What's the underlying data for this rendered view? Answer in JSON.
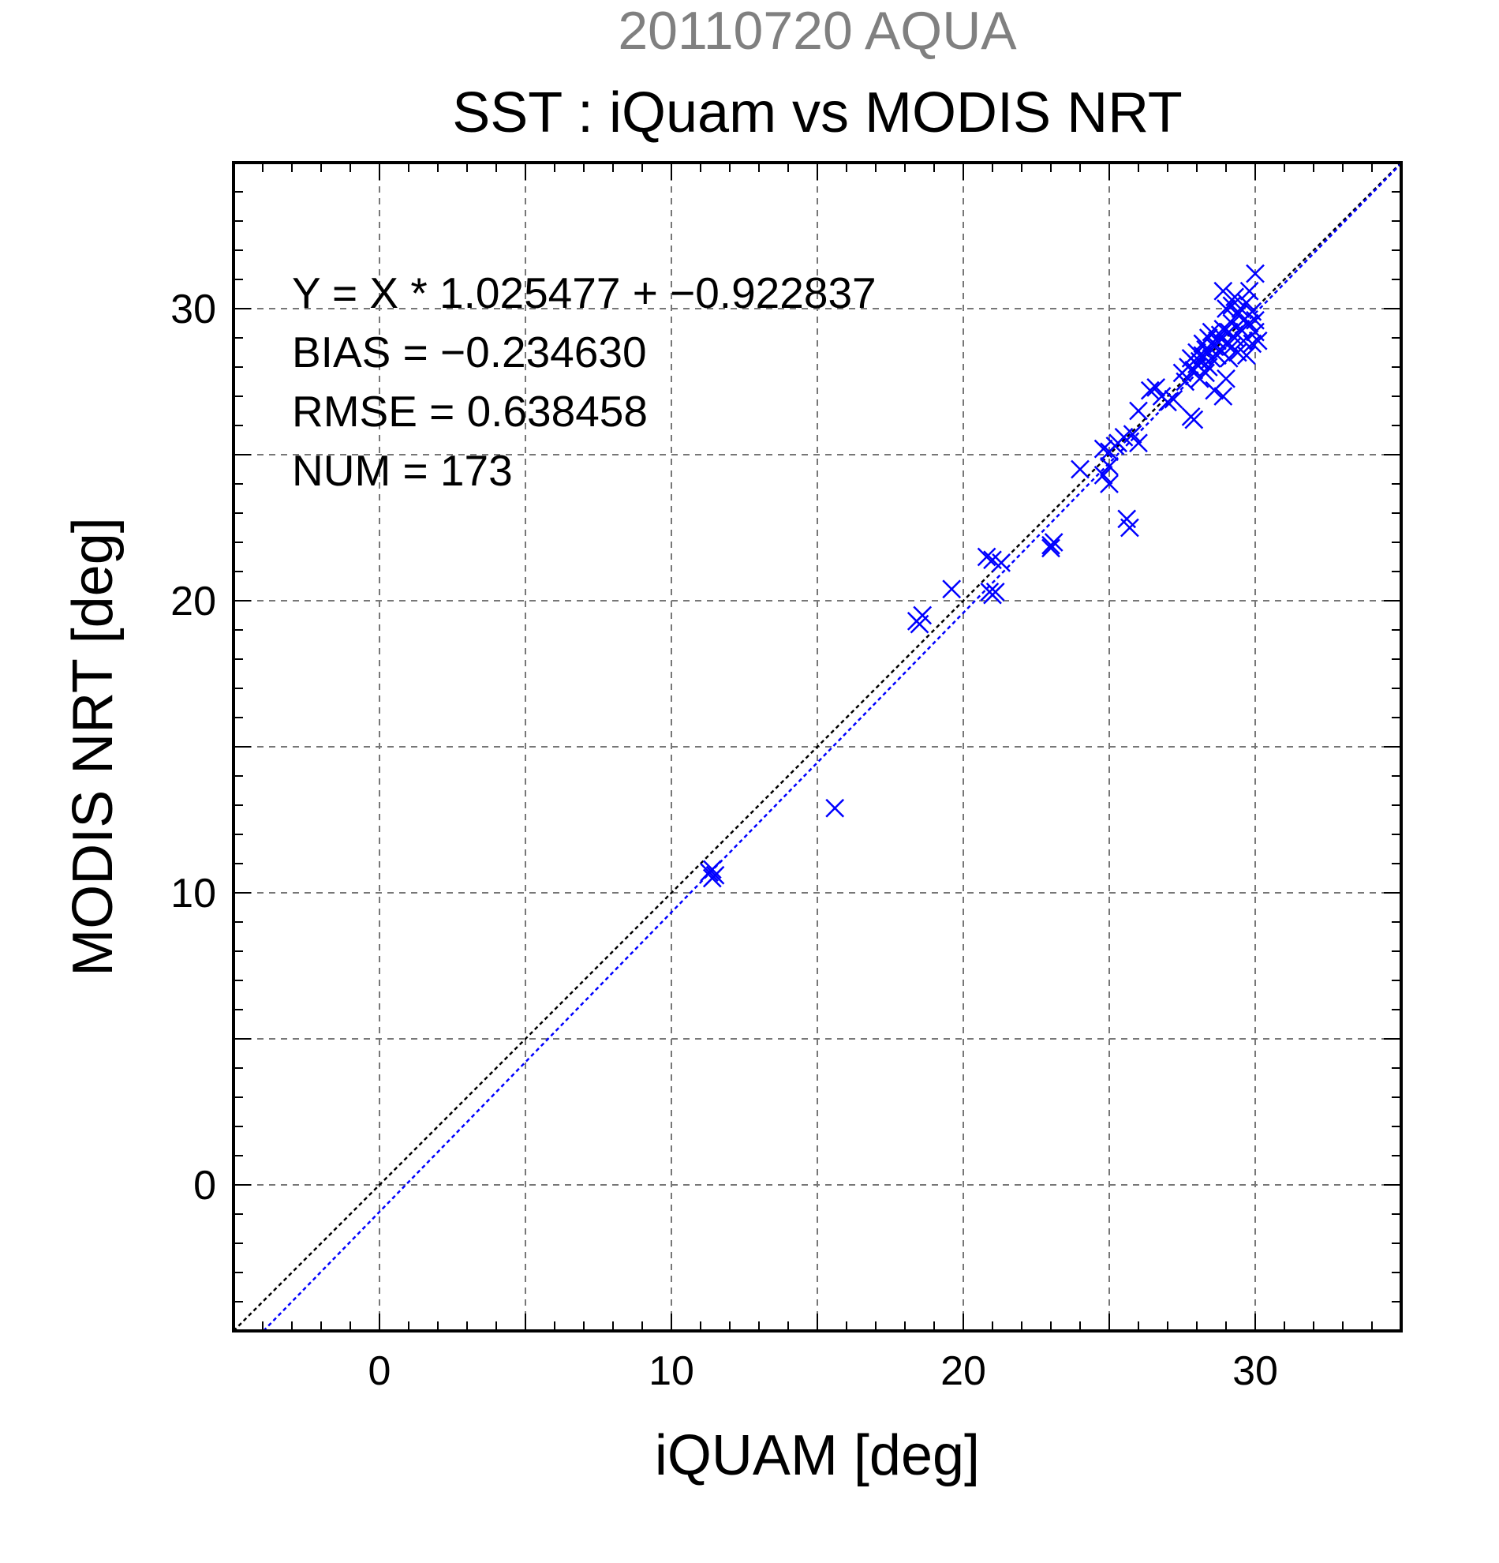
{
  "chart_data": {
    "type": "scatter",
    "suptitle": "20110720 AQUA",
    "title": "SST : iQuam vs MODIS NRT",
    "xlabel": "iQUAM [deg]",
    "ylabel": "MODIS NRT [deg]",
    "xlim": [
      -5,
      35
    ],
    "ylim": [
      -5,
      35
    ],
    "xticks": [
      0,
      10,
      20,
      30
    ],
    "yticks": [
      0,
      10,
      20,
      30
    ],
    "grid": true,
    "stats": {
      "line1": "Y = X * 1.025477 + −0.922837",
      "line2": "BIAS = −0.234630",
      "line3": "RMSE = 0.638458",
      "line4": "NUM = 173"
    },
    "lines": [
      {
        "role": "1:1",
        "slope": 1,
        "intercept": 0,
        "color": "#000000"
      },
      {
        "role": "fit",
        "slope": 1.025477,
        "intercept": -0.922837,
        "color": "#0000ff"
      }
    ],
    "series": [
      {
        "marker": "x",
        "color": "#0000ff",
        "points": [
          [
            11.3,
            10.7
          ],
          [
            11.4,
            10.5
          ],
          [
            11.5,
            10.6
          ],
          [
            11.4,
            10.8
          ],
          [
            15.6,
            12.9
          ],
          [
            18.4,
            19.3
          ],
          [
            18.5,
            19.2
          ],
          [
            18.6,
            19.5
          ],
          [
            19.6,
            20.4
          ],
          [
            20.9,
            20.3
          ],
          [
            21.0,
            20.2
          ],
          [
            21.1,
            20.3
          ],
          [
            20.8,
            21.5
          ],
          [
            21.0,
            21.4
          ],
          [
            21.3,
            21.3
          ],
          [
            23.0,
            21.9
          ],
          [
            23.1,
            22.0
          ],
          [
            23.0,
            21.8
          ],
          [
            24.0,
            24.5
          ],
          [
            24.8,
            25.2
          ],
          [
            25.0,
            25.1
          ],
          [
            25.2,
            25.3
          ],
          [
            24.8,
            24.3
          ],
          [
            25.0,
            24.0
          ],
          [
            25.0,
            24.6
          ],
          [
            25.3,
            25.4
          ],
          [
            25.5,
            25.6
          ],
          [
            25.8,
            25.7
          ],
          [
            25.6,
            22.8
          ],
          [
            25.7,
            22.5
          ],
          [
            26.0,
            25.4
          ],
          [
            26.0,
            26.5
          ],
          [
            26.4,
            27.2
          ],
          [
            26.6,
            27.3
          ],
          [
            26.8,
            27.0
          ],
          [
            27.0,
            26.8
          ],
          [
            27.2,
            26.9
          ],
          [
            27.5,
            27.8
          ],
          [
            27.6,
            27.5
          ],
          [
            27.8,
            26.3
          ],
          [
            27.9,
            26.2
          ],
          [
            27.7,
            28.0
          ],
          [
            27.8,
            28.3
          ],
          [
            27.9,
            27.9
          ],
          [
            28.0,
            28.5
          ],
          [
            28.0,
            28.1
          ],
          [
            28.1,
            28.2
          ],
          [
            28.1,
            27.6
          ],
          [
            28.2,
            28.8
          ],
          [
            28.2,
            28.4
          ],
          [
            28.3,
            28.6
          ],
          [
            28.3,
            27.8
          ],
          [
            28.4,
            28.0
          ],
          [
            28.4,
            29.0
          ],
          [
            28.5,
            29.2
          ],
          [
            28.5,
            28.3
          ],
          [
            28.6,
            28.7
          ],
          [
            28.6,
            27.2
          ],
          [
            28.7,
            28.9
          ],
          [
            28.7,
            28.4
          ],
          [
            28.8,
            29.1
          ],
          [
            28.8,
            28.6
          ],
          [
            28.9,
            29.3
          ],
          [
            28.9,
            30.6
          ],
          [
            29.0,
            28.8
          ],
          [
            29.0,
            27.6
          ],
          [
            29.1,
            29.2
          ],
          [
            29.1,
            28.3
          ],
          [
            29.2,
            29.5
          ],
          [
            29.2,
            28.7
          ],
          [
            29.3,
            29.0
          ],
          [
            29.3,
            30.4
          ],
          [
            29.4,
            29.8
          ],
          [
            29.4,
            28.5
          ],
          [
            29.5,
            29.3
          ],
          [
            29.5,
            30.0
          ],
          [
            29.6,
            28.9
          ],
          [
            29.6,
            29.6
          ],
          [
            29.7,
            30.2
          ],
          [
            29.7,
            28.4
          ],
          [
            29.8,
            29.5
          ],
          [
            29.8,
            30.6
          ],
          [
            29.9,
            28.8
          ],
          [
            29.9,
            29.9
          ],
          [
            30.0,
            31.2
          ],
          [
            30.0,
            29.2
          ],
          [
            30.1,
            28.9
          ],
          [
            28.9,
            27.0
          ],
          [
            29.0,
            30.0
          ],
          [
            29.2,
            30.1
          ],
          [
            30.0,
            29.6
          ]
        ]
      }
    ]
  }
}
